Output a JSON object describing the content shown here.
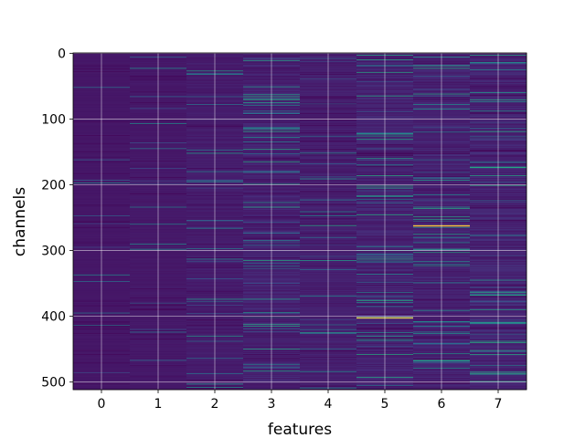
{
  "chart_data": {
    "type": "heatmap",
    "title": "",
    "xlabel": "features",
    "ylabel": "channels",
    "x_categories": [
      "0",
      "1",
      "2",
      "3",
      "4",
      "5",
      "6",
      "7"
    ],
    "y_ticks": [
      "0",
      "100",
      "200",
      "300",
      "400",
      "500"
    ],
    "y_range": [
      0,
      511
    ],
    "n_rows": 512,
    "colormap": "viridis",
    "grid": true,
    "column_intensity": [
      0.03,
      0.05,
      0.1,
      0.17,
      0.13,
      0.18,
      0.17,
      0.2
    ],
    "highlights": [
      {
        "feature": "6",
        "channel": 262,
        "level": 1.0
      },
      {
        "feature": "5",
        "channel": 402,
        "level": 0.9
      }
    ]
  }
}
